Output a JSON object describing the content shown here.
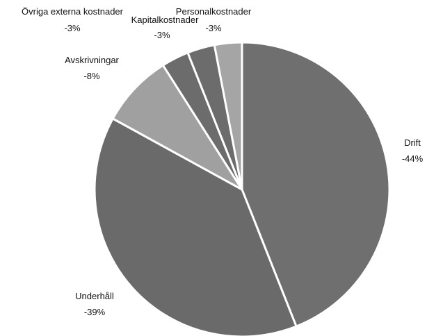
{
  "chart_data": {
    "type": "pie",
    "title": "",
    "slices": [
      {
        "label": "Drift",
        "value_label": "-44%",
        "value": 44,
        "color": "#6f6f6f"
      },
      {
        "label": "Underhåll",
        "value_label": "-39%",
        "value": 39,
        "color": "#6a6a6a"
      },
      {
        "label": "Avskrivningar",
        "value_label": "-8%",
        "value": 8,
        "color": "#a0a0a0"
      },
      {
        "label": "Övriga externa kostnader",
        "value_label": "-3%",
        "value": 3,
        "color": "#6c6c6c"
      },
      {
        "label": "Kapitalkostnader",
        "value_label": "-3%",
        "value": 3,
        "color": "#6c6c6c"
      },
      {
        "label": "Personalkostnader",
        "value_label": "-3%",
        "value": 3,
        "color": "#a5a5a5"
      }
    ]
  }
}
